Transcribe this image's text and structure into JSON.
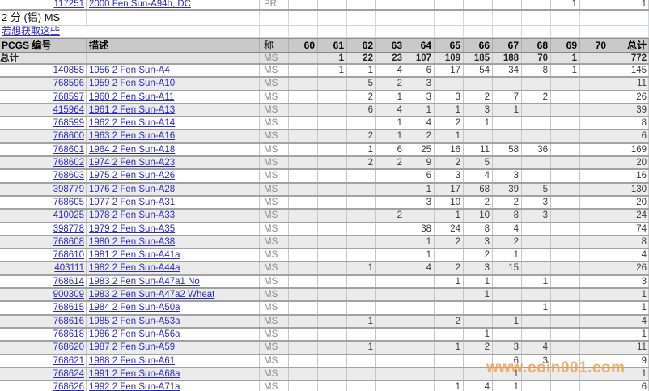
{
  "watermark": {
    "text": "www.coin001.com",
    "color": "#f29e49"
  },
  "section": {
    "title": "2 分 (铝) MS",
    "link_text": "若想获取这些"
  },
  "colors": {
    "link_blue": "#2a2ac8",
    "header_bg": "#c9c9c9",
    "stripe_bg": "#ebebeb",
    "totals_bg": "#e2e2e2",
    "grid_line": "#a2a2a2",
    "designation_text": "#8a8a8a",
    "watermark_orange": "#f29e49"
  },
  "table": {
    "columns": [
      "PCGS 编号",
      "描述",
      "称",
      "60",
      "61",
      "62",
      "63",
      "64",
      "65",
      "66",
      "67",
      "68",
      "69",
      "70",
      "总计"
    ],
    "top_partial_row": {
      "pcgs": "117251",
      "description": "2000 Fen Sun-A94h, DC",
      "designation": "PR",
      "grades": [
        "",
        "",
        "",
        "",
        "",
        "",
        "",
        "",
        "",
        "1",
        ""
      ],
      "total": "1"
    },
    "totals_row": {
      "label": "总计",
      "designation": "MS",
      "grades": [
        "",
        "1",
        "22",
        "23",
        "107",
        "109",
        "185",
        "188",
        "70",
        "1",
        ""
      ],
      "total": "772"
    },
    "rows": [
      {
        "pcgs": "140858",
        "description": "1956 2 Fen Sun-A4",
        "designation": "MS",
        "grades": [
          "",
          "1",
          "1",
          "4",
          "6",
          "17",
          "54",
          "34",
          "8",
          "1",
          ""
        ],
        "total": "145"
      },
      {
        "pcgs": "768596",
        "description": "1959 2 Fen Sun-A10",
        "designation": "MS",
        "grades": [
          "",
          "",
          "5",
          "2",
          "3",
          "",
          "",
          "",
          "",
          "",
          ""
        ],
        "total": "11"
      },
      {
        "pcgs": "768597",
        "description": "1960 2 Fen Sun-A11",
        "designation": "MS",
        "grades": [
          "",
          "",
          "2",
          "1",
          "3",
          "3",
          "2",
          "7",
          "2",
          "",
          ""
        ],
        "total": "26"
      },
      {
        "pcgs": "415964",
        "description": "1961 2 Fen Sun-A13",
        "designation": "MS",
        "grades": [
          "",
          "",
          "6",
          "4",
          "1",
          "1",
          "3",
          "1",
          "",
          "",
          ""
        ],
        "total": "39"
      },
      {
        "pcgs": "768599",
        "description": "1962 2 Fen Sun-A14",
        "designation": "MS",
        "grades": [
          "",
          "",
          "",
          "1",
          "4",
          "2",
          "1",
          "",
          "",
          "",
          ""
        ],
        "total": "8"
      },
      {
        "pcgs": "768600",
        "description": "1963 2 Fen Sun-A16",
        "designation": "MS",
        "grades": [
          "",
          "",
          "2",
          "1",
          "2",
          "1",
          "",
          "",
          "",
          "",
          ""
        ],
        "total": "6"
      },
      {
        "pcgs": "768601",
        "description": "1964 2 Fen Sun-A18",
        "designation": "MS",
        "grades": [
          "",
          "",
          "1",
          "6",
          "25",
          "16",
          "11",
          "58",
          "36",
          "",
          ""
        ],
        "total": "169"
      },
      {
        "pcgs": "768602",
        "description": "1974 2 Fen Sun-A23",
        "designation": "MS",
        "grades": [
          "",
          "",
          "2",
          "2",
          "9",
          "2",
          "5",
          "",
          "",
          "",
          ""
        ],
        "total": "20"
      },
      {
        "pcgs": "768603",
        "description": "1975 2 Fen Sun-A26",
        "designation": "MS",
        "grades": [
          "",
          "",
          "",
          "",
          "6",
          "3",
          "4",
          "3",
          "",
          "",
          ""
        ],
        "total": "16"
      },
      {
        "pcgs": "398779",
        "description": "1976 2 Fen Sun-A28",
        "designation": "MS",
        "grades": [
          "",
          "",
          "",
          "",
          "1",
          "17",
          "68",
          "39",
          "5",
          "",
          ""
        ],
        "total": "130"
      },
      {
        "pcgs": "768605",
        "description": "1977 2 Fen Sun-A31",
        "designation": "MS",
        "grades": [
          "",
          "",
          "",
          "",
          "3",
          "10",
          "2",
          "2",
          "3",
          "",
          ""
        ],
        "total": "20"
      },
      {
        "pcgs": "410025",
        "description": "1978 2 Fen Sun-A33",
        "designation": "MS",
        "grades": [
          "",
          "",
          "",
          "2",
          "",
          "1",
          "10",
          "8",
          "3",
          "",
          ""
        ],
        "total": "24"
      },
      {
        "pcgs": "398778",
        "description": "1979 2 Fen Sun-A35",
        "designation": "MS",
        "grades": [
          "",
          "",
          "",
          "",
          "38",
          "24",
          "8",
          "4",
          "",
          "",
          ""
        ],
        "total": "74"
      },
      {
        "pcgs": "768608",
        "description": "1980 2 Fen Sun-A38",
        "designation": "MS",
        "grades": [
          "",
          "",
          "",
          "",
          "1",
          "2",
          "3",
          "2",
          "",
          "",
          ""
        ],
        "total": "8"
      },
      {
        "pcgs": "768610",
        "description": "1981 2 Fen Sun-A41a",
        "designation": "MS",
        "grades": [
          "",
          "",
          "",
          "",
          "1",
          "",
          "2",
          "1",
          "",
          "",
          ""
        ],
        "total": "4"
      },
      {
        "pcgs": "403111",
        "description": "1982 2 Fen Sun-A44a",
        "designation": "MS",
        "grades": [
          "",
          "",
          "1",
          "",
          "4",
          "2",
          "3",
          "15",
          "",
          "",
          ""
        ],
        "total": "26"
      },
      {
        "pcgs": "768614",
        "description": "1983 2 Fen Sun-A47a1 No",
        "designation": "MS",
        "grades": [
          "",
          "",
          "",
          "",
          "",
          "1",
          "1",
          "",
          "1",
          "",
          ""
        ],
        "total": "3"
      },
      {
        "pcgs": "900309",
        "description": "1983 2 Fen Sun-A47a2 Wheat",
        "designation": "MS",
        "grades": [
          "",
          "",
          "",
          "",
          "",
          "",
          "1",
          "",
          "",
          "",
          ""
        ],
        "total": "1"
      },
      {
        "pcgs": "768615",
        "description": "1984 2 Fen Sun-A50a",
        "designation": "MS",
        "grades": [
          "",
          "",
          "",
          "",
          "",
          "",
          "",
          "",
          "1",
          "",
          ""
        ],
        "total": "1"
      },
      {
        "pcgs": "768616",
        "description": "1985 2 Fen Sun-A53a",
        "designation": "MS",
        "grades": [
          "",
          "",
          "1",
          "",
          "",
          "2",
          "",
          "1",
          "",
          "",
          ""
        ],
        "total": "4"
      },
      {
        "pcgs": "768618",
        "description": "1986 2 Fen Sun-A56a",
        "designation": "MS",
        "grades": [
          "",
          "",
          "",
          "",
          "",
          "",
          "1",
          "",
          "",
          "",
          ""
        ],
        "total": "1"
      },
      {
        "pcgs": "768620",
        "description": "1987 2 Fen Sun-A59",
        "designation": "MS",
        "grades": [
          "",
          "",
          "1",
          "",
          "",
          "1",
          "2",
          "3",
          "4",
          "",
          ""
        ],
        "total": "11"
      },
      {
        "pcgs": "768621",
        "description": "1988 2 Fen Sun-A61",
        "designation": "MS",
        "grades": [
          "",
          "",
          "",
          "",
          "",
          "",
          "",
          "6",
          "3",
          "",
          ""
        ],
        "total": "9"
      },
      {
        "pcgs": "768624",
        "description": "1991 2 Fen Sun-A68a",
        "designation": "MS",
        "grades": [
          "",
          "",
          "",
          "",
          "",
          "",
          "",
          "1",
          "",
          "",
          ""
        ],
        "total": "1"
      },
      {
        "pcgs": "768626",
        "description": "1992 2 Fen Sun-A71a",
        "designation": "MS",
        "grades": [
          "",
          "",
          "",
          "",
          "",
          "1",
          "4",
          "1",
          "",
          "",
          ""
        ],
        "total": "6"
      }
    ]
  }
}
